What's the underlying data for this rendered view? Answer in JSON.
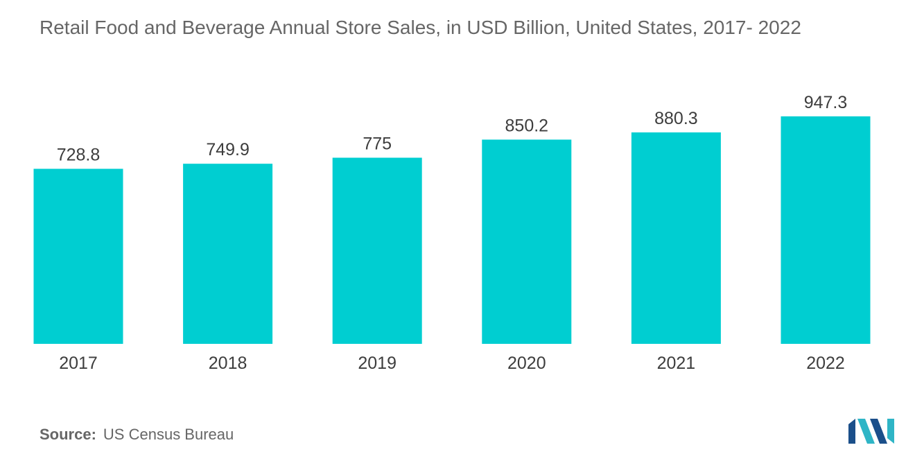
{
  "chart_data": {
    "type": "bar",
    "title": "Retail Food and Beverage Annual Store Sales, in USD Billion, United States, 2017- 2022",
    "categories": [
      "2017",
      "2018",
      "2019",
      "2020",
      "2021",
      "2022"
    ],
    "values": [
      728.8,
      749.9,
      775,
      850.2,
      880.3,
      947.3
    ],
    "value_labels": [
      "728.8",
      "749.9",
      "775",
      "850.2",
      "880.3",
      "947.3"
    ],
    "xlabel": "",
    "ylabel": "",
    "ylim": [
      0,
      1000
    ],
    "grid": false,
    "legend": "none",
    "bar_color": "#00CED1"
  },
  "source": {
    "label": "Source:",
    "text": "US Census Bureau"
  },
  "logo": {
    "icon": "mordor-intelligence-logo",
    "colors": [
      "#1B4F8A",
      "#2FB5C6"
    ]
  }
}
